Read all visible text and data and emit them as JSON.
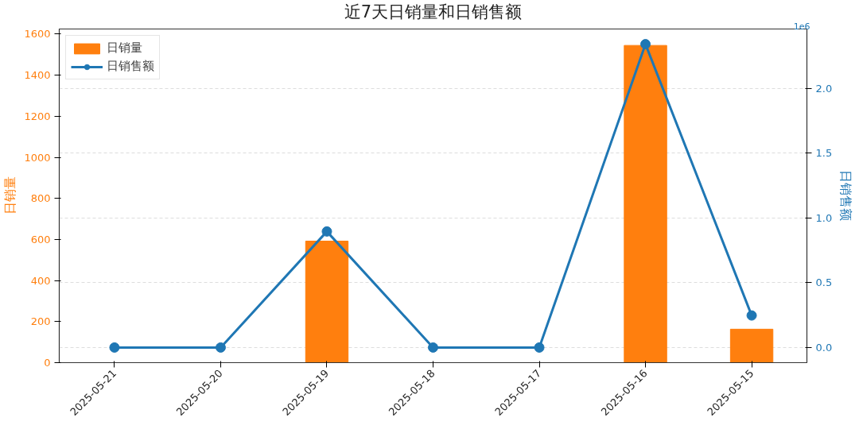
{
  "chart_data": {
    "type": "bar",
    "title": "近7天日销量和日销售额",
    "categories": [
      "2025-05-21",
      "2025-05-20",
      "2025-05-19",
      "2025-05-18",
      "2025-05-17",
      "2025-05-16",
      "2025-05-15"
    ],
    "series": [
      {
        "name": "日销量",
        "color": "#ff7f0e",
        "values": [
          0,
          0,
          592,
          0,
          0,
          1545,
          163
        ]
      },
      {
        "name": "日销售额",
        "type": "line",
        "axis": "y2",
        "color": "#1f77b4",
        "marker": "circle",
        "line_style": "solid",
        "values": [
          0,
          0,
          0.895,
          0,
          0,
          2.34,
          0.247
        ]
      }
    ],
    "ylabel": "日销量",
    "y2label": "日销售额",
    "ylim": [
      0,
      1625
    ],
    "yticks": [
      0,
      200,
      400,
      600,
      800,
      1000,
      1200,
      1400,
      1600
    ],
    "y2lim": [
      -0.117,
      2.457
    ],
    "y2ticks": [
      {
        "value": 0,
        "label": "0.0"
      },
      {
        "value": 0.5,
        "label": "0.5"
      },
      {
        "value": 1,
        "label": "1.0"
      },
      {
        "value": 1.5,
        "label": "1.5"
      },
      {
        "value": 2,
        "label": "2.0"
      }
    ],
    "annotations": [
      "1e6"
    ],
    "grid": "y2",
    "legend": "top left"
  }
}
